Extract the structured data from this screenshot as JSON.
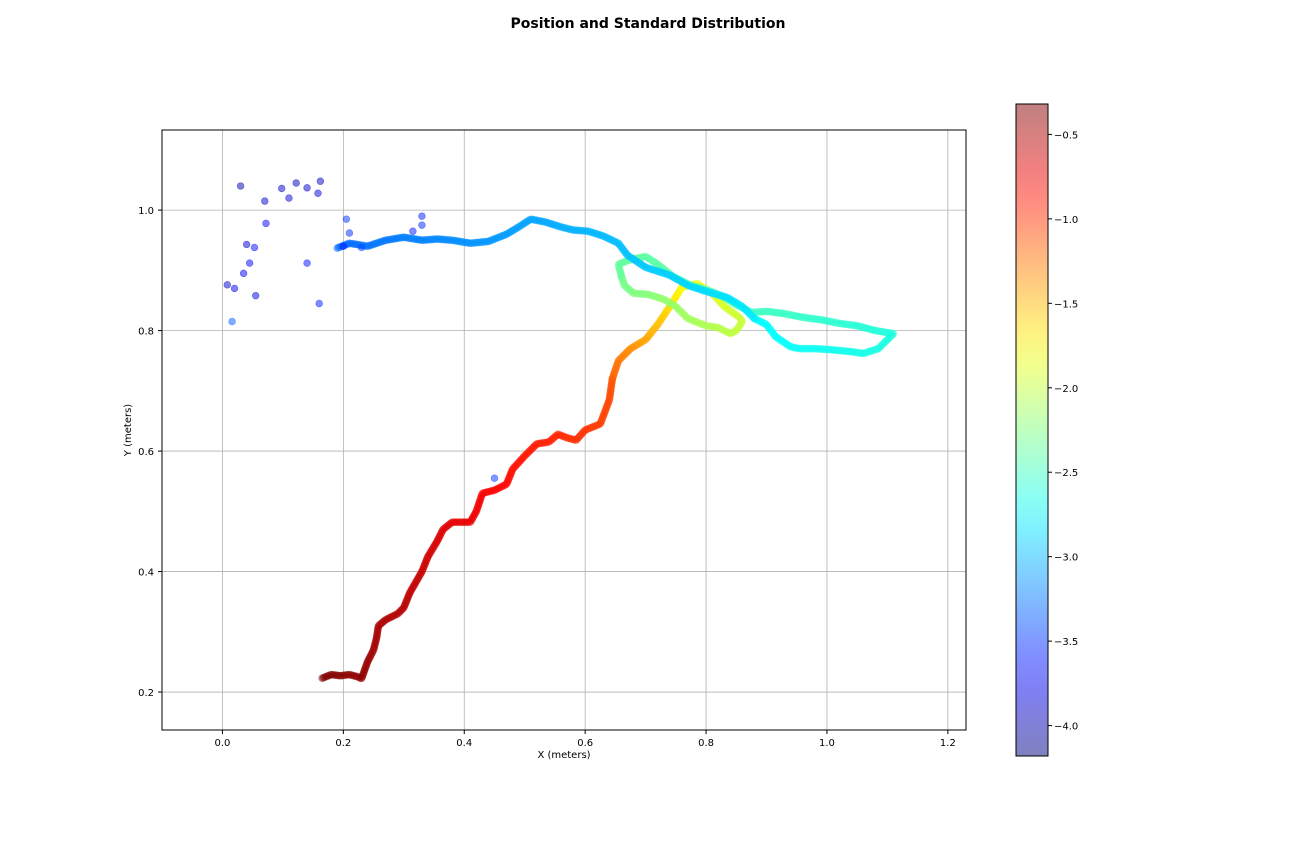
{
  "chart_data": {
    "type": "scatter",
    "title": "Position and Standard Distribution",
    "xlabel": "X (meters)",
    "ylabel": "Y (meters)",
    "xlim": [
      -0.1,
      1.23
    ],
    "ylim": [
      0.137,
      1.133
    ],
    "xticks": [
      0.0,
      0.2,
      0.4,
      0.6,
      0.8,
      1.0,
      1.2
    ],
    "xtick_labels": [
      "0.0",
      "0.2",
      "0.4",
      "0.6",
      "0.8",
      "1.0",
      "1.2"
    ],
    "yticks": [
      0.2,
      0.4,
      0.6,
      0.8,
      1.0
    ],
    "ytick_labels": [
      "0.2",
      "0.4",
      "0.6",
      "0.8",
      "1.0"
    ],
    "grid": true,
    "colormap": "jet",
    "marker_alpha": 0.5,
    "colorbar": {
      "range": [
        -4.18,
        -0.32
      ],
      "ticks": [
        -4.0,
        -3.5,
        -3.0,
        -2.5,
        -2.0,
        -1.5,
        -1.0,
        -0.5
      ],
      "tick_labels": [
        "−4.0",
        "−3.5",
        "−3.0",
        "−2.5",
        "−2.0",
        "−1.5",
        "−1.0",
        "−0.5"
      ]
    },
    "paths": [
      {
        "name": "trajectory",
        "c_range": [
          -0.32,
          -1.1
        ],
        "points": [
          [
            0.165,
            0.223
          ],
          [
            0.18,
            0.229
          ],
          [
            0.195,
            0.227
          ],
          [
            0.21,
            0.229
          ],
          [
            0.225,
            0.225
          ],
          [
            0.23,
            0.222
          ],
          [
            0.24,
            0.25
          ],
          [
            0.25,
            0.27
          ],
          [
            0.255,
            0.29
          ],
          [
            0.258,
            0.31
          ],
          [
            0.27,
            0.32
          ],
          [
            0.29,
            0.33
          ],
          [
            0.3,
            0.34
          ],
          [
            0.31,
            0.365
          ],
          [
            0.33,
            0.4
          ],
          [
            0.34,
            0.425
          ],
          [
            0.355,
            0.45
          ],
          [
            0.365,
            0.47
          ],
          [
            0.38,
            0.482
          ],
          [
            0.41,
            0.482
          ],
          [
            0.42,
            0.5
          ],
          [
            0.43,
            0.53
          ],
          [
            0.45,
            0.535
          ],
          [
            0.47,
            0.545
          ],
          [
            0.48,
            0.57
          ],
          [
            0.5,
            0.592
          ],
          [
            0.52,
            0.612
          ],
          [
            0.54,
            0.615
          ],
          [
            0.555,
            0.628
          ],
          [
            0.57,
            0.622
          ],
          [
            0.585,
            0.618
          ],
          [
            0.6,
            0.635
          ],
          [
            0.625,
            0.645
          ],
          [
            0.64,
            0.685
          ],
          [
            0.645,
            0.72
          ]
        ]
      },
      {
        "name": "trajectory",
        "c_range": [
          -1.15,
          -1.75
        ],
        "points": [
          [
            0.645,
            0.72
          ],
          [
            0.655,
            0.75
          ],
          [
            0.675,
            0.77
          ],
          [
            0.7,
            0.785
          ],
          [
            0.72,
            0.81
          ],
          [
            0.74,
            0.84
          ],
          [
            0.76,
            0.872
          ]
        ]
      },
      {
        "name": "trajectory",
        "c_range": [
          -1.8,
          -2.3
        ],
        "points": [
          [
            0.76,
            0.872
          ],
          [
            0.785,
            0.878
          ],
          [
            0.81,
            0.862
          ],
          [
            0.83,
            0.84
          ],
          [
            0.855,
            0.822
          ],
          [
            0.86,
            0.815
          ],
          [
            0.85,
            0.8
          ],
          [
            0.84,
            0.795
          ],
          [
            0.82,
            0.805
          ],
          [
            0.8,
            0.808
          ],
          [
            0.77,
            0.82
          ],
          [
            0.75,
            0.84
          ],
          [
            0.73,
            0.852
          ],
          [
            0.705,
            0.86
          ],
          [
            0.68,
            0.862
          ],
          [
            0.665,
            0.875
          ],
          [
            0.66,
            0.89
          ]
        ]
      },
      {
        "name": "trajectory",
        "c_range": [
          -2.35,
          -2.75
        ],
        "points": [
          [
            0.66,
            0.89
          ],
          [
            0.655,
            0.91
          ],
          [
            0.675,
            0.918
          ],
          [
            0.7,
            0.923
          ],
          [
            0.72,
            0.91
          ],
          [
            0.745,
            0.89
          ],
          [
            0.775,
            0.875
          ],
          [
            0.8,
            0.868
          ],
          [
            0.825,
            0.858
          ],
          [
            0.85,
            0.843
          ],
          [
            0.875,
            0.83
          ],
          [
            0.9,
            0.832
          ],
          [
            0.93,
            0.828
          ],
          [
            0.96,
            0.822
          ],
          [
            0.99,
            0.818
          ],
          [
            1.02,
            0.812
          ],
          [
            1.05,
            0.808
          ],
          [
            1.08,
            0.8
          ],
          [
            1.11,
            0.795
          ],
          [
            1.1,
            0.785
          ],
          [
            1.085,
            0.77
          ],
          [
            1.06,
            0.762
          ],
          [
            1.04,
            0.765
          ],
          [
            1.01,
            0.768
          ],
          [
            0.98,
            0.77
          ],
          [
            0.955,
            0.77
          ],
          [
            0.94,
            0.773
          ],
          [
            0.915,
            0.79
          ],
          [
            0.9,
            0.81
          ],
          [
            0.88,
            0.82
          ]
        ]
      },
      {
        "name": "trajectory",
        "c_range": [
          -2.8,
          -3.3
        ],
        "points": [
          [
            0.88,
            0.82
          ],
          [
            0.86,
            0.84
          ],
          [
            0.835,
            0.855
          ],
          [
            0.8,
            0.865
          ],
          [
            0.77,
            0.875
          ],
          [
            0.74,
            0.892
          ],
          [
            0.7,
            0.905
          ],
          [
            0.67,
            0.925
          ],
          [
            0.655,
            0.945
          ],
          [
            0.63,
            0.957
          ],
          [
            0.605,
            0.965
          ],
          [
            0.58,
            0.967
          ],
          [
            0.56,
            0.972
          ],
          [
            0.535,
            0.98
          ],
          [
            0.51,
            0.985
          ],
          [
            0.49,
            0.972
          ],
          [
            0.47,
            0.96
          ],
          [
            0.44,
            0.948
          ],
          [
            0.41,
            0.945
          ],
          [
            0.38,
            0.95
          ],
          [
            0.355,
            0.952
          ],
          [
            0.33,
            0.95
          ],
          [
            0.3,
            0.955
          ],
          [
            0.27,
            0.95
          ],
          [
            0.24,
            0.94
          ],
          [
            0.21,
            0.945
          ],
          [
            0.19,
            0.937
          ]
        ]
      }
    ],
    "scatter": [
      {
        "x": 0.23,
        "y": 0.938,
        "c": -3.45
      },
      {
        "x": 0.205,
        "y": 0.985,
        "c": -3.5
      },
      {
        "x": 0.21,
        "y": 0.962,
        "c": -3.55
      },
      {
        "x": 0.2,
        "y": 0.94,
        "c": -3.6
      },
      {
        "x": 0.16,
        "y": 0.845,
        "c": -3.6
      },
      {
        "x": 0.14,
        "y": 0.912,
        "c": -3.65
      },
      {
        "x": 0.162,
        "y": 1.048,
        "c": -3.9
      },
      {
        "x": 0.158,
        "y": 1.028,
        "c": -3.85
      },
      {
        "x": 0.14,
        "y": 1.037,
        "c": -3.9
      },
      {
        "x": 0.122,
        "y": 1.045,
        "c": -3.95
      },
      {
        "x": 0.11,
        "y": 1.02,
        "c": -3.85
      },
      {
        "x": 0.098,
        "y": 1.036,
        "c": -3.9
      },
      {
        "x": 0.072,
        "y": 0.978,
        "c": -3.75
      },
      {
        "x": 0.07,
        "y": 1.015,
        "c": -3.9
      },
      {
        "x": 0.03,
        "y": 1.04,
        "c": -4.0
      },
      {
        "x": 0.04,
        "y": 0.943,
        "c": -3.85
      },
      {
        "x": 0.053,
        "y": 0.938,
        "c": -3.65
      },
      {
        "x": 0.045,
        "y": 0.912,
        "c": -3.7
      },
      {
        "x": 0.035,
        "y": 0.895,
        "c": -3.75
      },
      {
        "x": 0.055,
        "y": 0.858,
        "c": -3.85
      },
      {
        "x": 0.008,
        "y": 0.876,
        "c": -3.9
      },
      {
        "x": 0.02,
        "y": 0.87,
        "c": -3.75
      },
      {
        "x": 0.016,
        "y": 0.815,
        "c": -3.35
      },
      {
        "x": 0.33,
        "y": 0.99,
        "c": -3.6
      },
      {
        "x": 0.33,
        "y": 0.975,
        "c": -3.55
      },
      {
        "x": 0.315,
        "y": 0.965,
        "c": -3.6
      },
      {
        "x": 0.45,
        "y": 0.555,
        "c": -3.5
      }
    ]
  }
}
